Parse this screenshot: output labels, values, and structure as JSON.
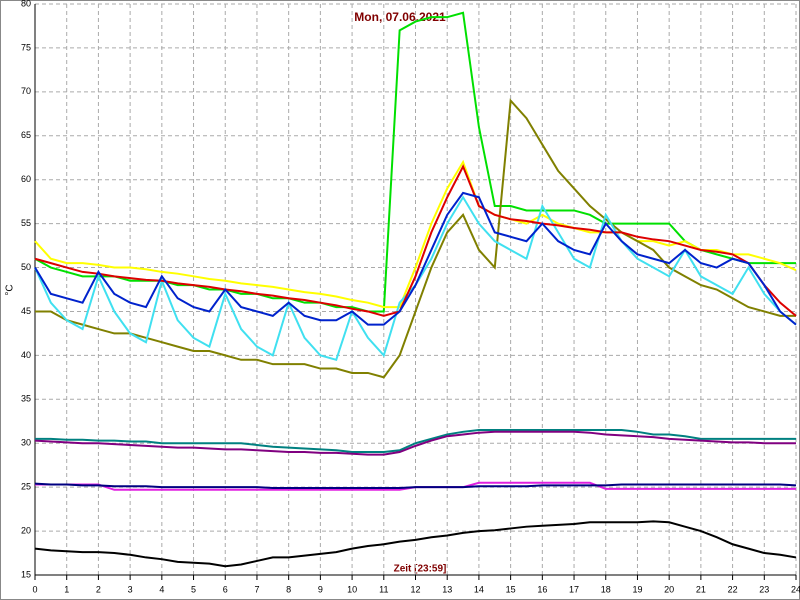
{
  "chart_data": {
    "type": "line",
    "title": "Mon, 07.06.2021",
    "x_label": "Zeit [23:59]",
    "y_label": "°C",
    "xlim": [
      0,
      24
    ],
    "xticks": [
      0,
      1,
      2,
      3,
      4,
      5,
      6,
      7,
      8,
      9,
      10,
      11,
      12,
      13,
      14,
      15,
      16,
      17,
      18,
      19,
      20,
      21,
      22,
      23,
      24
    ],
    "ylim": [
      15,
      80
    ],
    "yticks": [
      15,
      20,
      25,
      30,
      35,
      40,
      45,
      50,
      55,
      60,
      65,
      70,
      75,
      80
    ],
    "grid": true,
    "x": [
      0,
      0.5,
      1,
      1.5,
      2,
      2.5,
      3,
      3.5,
      4,
      4.5,
      5,
      5.5,
      6,
      6.5,
      7,
      7.5,
      8,
      8.5,
      9,
      9.5,
      10,
      10.5,
      11,
      11.5,
      12,
      12.5,
      13,
      13.5,
      14,
      14.5,
      15,
      15.5,
      16,
      16.5,
      17,
      17.5,
      18,
      18.5,
      19,
      19.5,
      20,
      20.5,
      21,
      21.5,
      22,
      22.5,
      23,
      23.5,
      24
    ],
    "series": [
      {
        "color": "#00e000",
        "values": [
          51,
          50,
          49.5,
          49,
          49,
          49,
          48.5,
          48.5,
          48.5,
          48,
          48,
          47.5,
          47.5,
          47,
          47,
          46.5,
          46.5,
          46,
          46,
          45.5,
          45.5,
          45,
          45,
          77,
          78,
          78.5,
          78.5,
          79,
          66,
          57,
          57,
          56.5,
          56.5,
          56.5,
          56.5,
          56,
          55,
          55,
          55,
          55,
          55,
          53,
          52,
          51.5,
          51,
          50.5,
          50.5,
          50.5,
          50.5
        ]
      },
      {
        "color": "#ffff00",
        "values": [
          53,
          51,
          50.5,
          50.5,
          50.3,
          50,
          50,
          49.8,
          49.5,
          49.3,
          49,
          48.7,
          48.5,
          48.2,
          48,
          47.8,
          47.5,
          47.2,
          47,
          46.7,
          46.3,
          46,
          45.5,
          45.5,
          50,
          55,
          59,
          62,
          57,
          56,
          55.5,
          55,
          56,
          55,
          54.5,
          54,
          54,
          54,
          53,
          53,
          52.5,
          53,
          52,
          52,
          51.5,
          51.5,
          51,
          50.5,
          49.7
        ]
      },
      {
        "color": "#808000",
        "values": [
          45,
          45,
          44,
          43.5,
          43,
          42.5,
          42.5,
          42,
          41.5,
          41,
          40.5,
          40.5,
          40,
          39.5,
          39.5,
          39,
          39,
          39,
          38.5,
          38.5,
          38,
          38,
          37.5,
          40,
          45,
          50,
          54,
          56,
          52,
          50,
          69,
          67,
          64,
          61,
          59,
          57,
          55.5,
          54,
          53,
          52,
          50,
          49,
          48,
          47.5,
          46.5,
          45.5,
          45,
          44.5,
          44.5
        ]
      },
      {
        "color": "#40e0f0",
        "values": [
          50,
          46,
          44,
          43,
          49,
          45,
          42.5,
          41.5,
          48.5,
          44,
          42,
          41,
          47,
          43,
          41,
          40,
          46,
          42,
          40,
          39.5,
          45,
          42,
          40,
          46,
          48,
          51,
          55,
          58,
          55,
          53,
          52,
          51,
          57,
          54,
          51,
          50,
          56,
          53,
          51,
          50,
          49,
          52,
          49,
          48,
          47,
          50,
          47,
          45,
          43.5
        ]
      },
      {
        "color": "#dd0000",
        "values": [
          51,
          50.5,
          50,
          49.5,
          49.3,
          49,
          48.8,
          48.6,
          48.5,
          48.2,
          48,
          47.8,
          47.5,
          47.3,
          47,
          46.8,
          46.5,
          46.3,
          46,
          45.7,
          45.3,
          45,
          44.5,
          45,
          49,
          54,
          58,
          61.5,
          57,
          56,
          55.5,
          55.3,
          55,
          54.8,
          54.5,
          54.3,
          54,
          54,
          53.5,
          53.2,
          53,
          52.5,
          52,
          51.8,
          51.5,
          50.5,
          48,
          46,
          44.5
        ]
      },
      {
        "color": "#0022cc",
        "values": [
          50,
          47,
          46.5,
          46,
          49.5,
          47,
          46,
          45.5,
          49,
          46.5,
          45.5,
          45,
          47.5,
          45.5,
          45,
          44.5,
          46,
          44.5,
          44,
          44,
          45,
          43.5,
          43.5,
          45,
          48,
          52,
          56,
          58.5,
          58,
          54,
          53.5,
          53,
          55,
          53,
          52,
          51.5,
          55,
          53,
          51.5,
          51,
          50.5,
          52,
          50.5,
          50,
          51,
          50.5,
          48,
          45,
          43.5
        ]
      },
      {
        "color": "#008080",
        "values": [
          30.5,
          30.5,
          30.4,
          30.4,
          30.3,
          30.3,
          30.2,
          30.2,
          30,
          30,
          30,
          30,
          30,
          30,
          29.8,
          29.6,
          29.5,
          29.4,
          29.3,
          29.2,
          29,
          29,
          29,
          29.2,
          30,
          30.5,
          31,
          31.3,
          31.5,
          31.5,
          31.5,
          31.5,
          31.5,
          31.5,
          31.5,
          31.5,
          31.5,
          31.5,
          31.3,
          31,
          31,
          30.8,
          30.5,
          30.5,
          30.5,
          30.5,
          30.5,
          30.5,
          30.5
        ]
      },
      {
        "color": "#800080",
        "values": [
          30.3,
          30.2,
          30.1,
          30,
          30,
          29.9,
          29.8,
          29.7,
          29.6,
          29.5,
          29.5,
          29.4,
          29.3,
          29.3,
          29.2,
          29.1,
          29,
          29,
          28.9,
          28.9,
          28.8,
          28.7,
          28.7,
          29,
          29.7,
          30.3,
          30.8,
          31,
          31.2,
          31.3,
          31.3,
          31.3,
          31.3,
          31.3,
          31.3,
          31.2,
          31,
          30.9,
          30.8,
          30.7,
          30.5,
          30.4,
          30.3,
          30.2,
          30.1,
          30.1,
          30,
          30,
          30
        ]
      },
      {
        "color": "#e020e0",
        "values": [
          25.3,
          25.3,
          25.3,
          25.3,
          25.3,
          24.7,
          24.7,
          24.7,
          24.7,
          24.7,
          24.7,
          24.7,
          24.7,
          24.7,
          24.7,
          24.7,
          24.7,
          24.7,
          24.7,
          24.7,
          24.7,
          24.7,
          24.7,
          24.7,
          25,
          25,
          25,
          25,
          25.5,
          25.5,
          25.5,
          25.5,
          25.5,
          25.5,
          25.5,
          25.5,
          24.8,
          24.8,
          24.8,
          24.8,
          24.8,
          24.8,
          24.8,
          24.8,
          24.8,
          24.8,
          24.8,
          24.8,
          24.8
        ]
      },
      {
        "color": "#000080",
        "values": [
          25.4,
          25.3,
          25.3,
          25.2,
          25.2,
          25.1,
          25.1,
          25.1,
          25,
          25,
          25,
          25,
          25,
          25,
          25,
          24.9,
          24.9,
          24.9,
          24.9,
          24.9,
          24.9,
          24.9,
          24.9,
          24.9,
          25,
          25,
          25,
          25,
          25.1,
          25.1,
          25.1,
          25.1,
          25.2,
          25.2,
          25.2,
          25.2,
          25.2,
          25.3,
          25.3,
          25.3,
          25.3,
          25.3,
          25.3,
          25.3,
          25.3,
          25.3,
          25.3,
          25.3,
          25.2
        ]
      },
      {
        "color": "#000000",
        "values": [
          18,
          17.8,
          17.7,
          17.6,
          17.6,
          17.5,
          17.3,
          17,
          16.8,
          16.5,
          16.4,
          16.3,
          16,
          16.2,
          16.6,
          17,
          17,
          17.2,
          17.4,
          17.6,
          18,
          18.3,
          18.5,
          18.8,
          19,
          19.3,
          19.5,
          19.8,
          20,
          20.1,
          20.3,
          20.5,
          20.6,
          20.7,
          20.8,
          21,
          21,
          21,
          21,
          21.1,
          21,
          20.5,
          20,
          19.3,
          18.5,
          18,
          17.5,
          17.3,
          17
        ]
      }
    ]
  }
}
